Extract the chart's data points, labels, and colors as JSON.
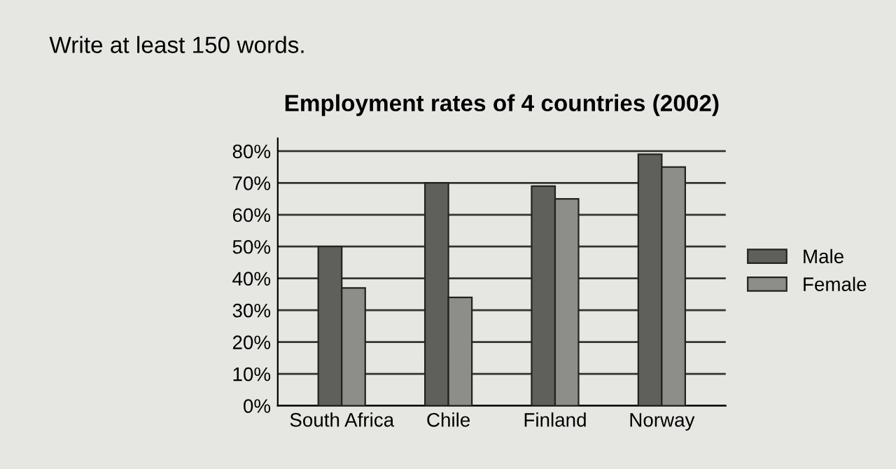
{
  "chart_data": {
    "type": "bar",
    "title": "Employment rates of 4 countries (2002)",
    "annotations": [
      "Write at least 150 words."
    ],
    "categories": [
      "South Africa",
      "Chile",
      "Finland",
      "Norway"
    ],
    "series": [
      {
        "name": "Male",
        "color": "#5f605c",
        "values": [
          50,
          70,
          69,
          79
        ]
      },
      {
        "name": "Female",
        "color": "#8d8e89",
        "values": [
          37,
          34,
          65,
          75
        ]
      }
    ],
    "ylim": [
      0,
      84
    ],
    "yticks": [
      {
        "value": 0,
        "label": "0%"
      },
      {
        "value": 10,
        "label": "10%"
      },
      {
        "value": 20,
        "label": "20%"
      },
      {
        "value": 30,
        "label": "30%"
      },
      {
        "value": 40,
        "label": "40%"
      },
      {
        "value": 50,
        "label": "50%"
      },
      {
        "value": 60,
        "label": "60%"
      },
      {
        "value": 70,
        "label": "70%"
      },
      {
        "value": 80,
        "label": "80%"
      }
    ],
    "grid": "y",
    "legend": "right"
  }
}
